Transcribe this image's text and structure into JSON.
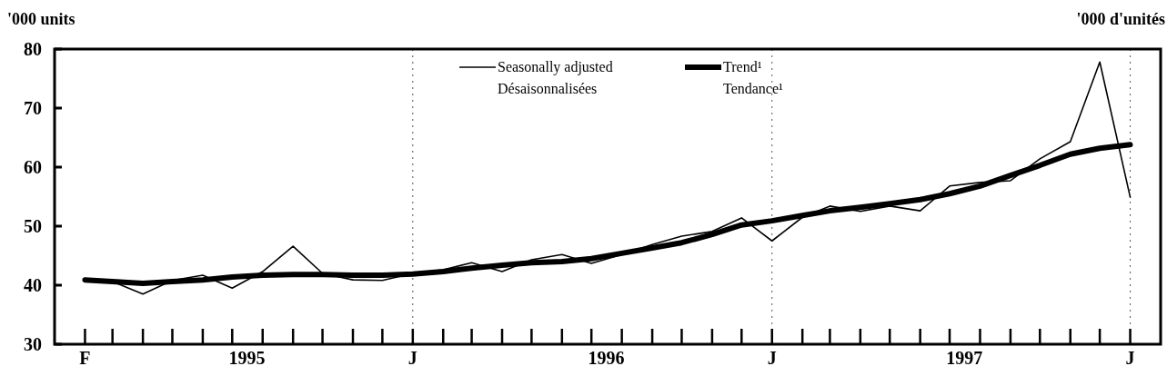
{
  "chart_data": {
    "type": "line",
    "ylabel": "'000 units",
    "annotations": [
      "'000 d'unités"
    ],
    "x": [
      "1995-02",
      "1995-03",
      "1995-04",
      "1995-05",
      "1995-06",
      "1995-07",
      "1995-08",
      "1995-09",
      "1995-10",
      "1995-11",
      "1995-12",
      "1996-01",
      "1996-02",
      "1996-03",
      "1996-04",
      "1996-05",
      "1996-06",
      "1996-07",
      "1996-08",
      "1996-09",
      "1996-10",
      "1996-11",
      "1996-12",
      "1997-01",
      "1997-02",
      "1997-03",
      "1997-04",
      "1997-05",
      "1997-06",
      "1997-07",
      "1997-08",
      "1997-09",
      "1997-10",
      "1997-11",
      "1997-12",
      "1998-01"
    ],
    "series": [
      {
        "name": "Seasonally adjusted\nDésaisonnalisées",
        "color": "#000000",
        "line_style": "solid",
        "values": [
          40.9,
          40.6,
          38.5,
          40.8,
          41.7,
          39.5,
          42.3,
          46.6,
          42.0,
          40.9,
          40.8,
          42.0,
          42.6,
          43.8,
          42.3,
          44.3,
          45.2,
          43.7,
          45.2,
          46.9,
          48.3,
          49.1,
          51.4,
          47.5,
          51.5,
          53.4,
          52.5,
          53.4,
          52.6,
          56.8,
          57.4,
          57.7,
          61.4,
          64.3,
          77.8,
          54.9
        ]
      },
      {
        "name": "Trend¹\nTendance¹",
        "color": "#000000",
        "line_style": "solid",
        "values": [
          40.9,
          40.6,
          40.3,
          40.6,
          40.9,
          41.4,
          41.7,
          41.8,
          41.8,
          41.7,
          41.7,
          41.9,
          42.3,
          42.9,
          43.4,
          43.8,
          44.0,
          44.5,
          45.4,
          46.3,
          47.2,
          48.6,
          50.2,
          50.9,
          51.8,
          52.6,
          53.2,
          53.8,
          54.5,
          55.5,
          56.8,
          58.6,
          60.3,
          62.2,
          63.2,
          63.8
        ]
      }
    ],
    "xlim": [
      "1995-01",
      "1998-02"
    ],
    "xticks": [
      {
        "value": "1995-02",
        "label": "F"
      },
      {
        "value": "1996-01",
        "label": "J"
      },
      {
        "value": "1997-01",
        "label": "J"
      },
      {
        "value": "1998-01",
        "label": "J"
      },
      {
        "value": "1995-07-16",
        "label": "1995"
      },
      {
        "value": "1996-07-16",
        "label": "1996"
      },
      {
        "value": "1997-07-16",
        "label": "1997"
      }
    ],
    "ylim": [
      30,
      80
    ],
    "yticks": [
      30,
      40,
      50,
      60,
      70,
      80
    ],
    "ref_lines": [
      {
        "axis": "x",
        "value": "1996-01",
        "line_style": "dotted",
        "color": "#555555"
      },
      {
        "axis": "x",
        "value": "1997-01",
        "line_style": "dotted",
        "color": "#555555"
      },
      {
        "axis": "x",
        "value": "1998-01",
        "line_style": "dotted",
        "color": "#555555"
      }
    ],
    "legend": "top",
    "grid": false,
    "marker": "none"
  }
}
